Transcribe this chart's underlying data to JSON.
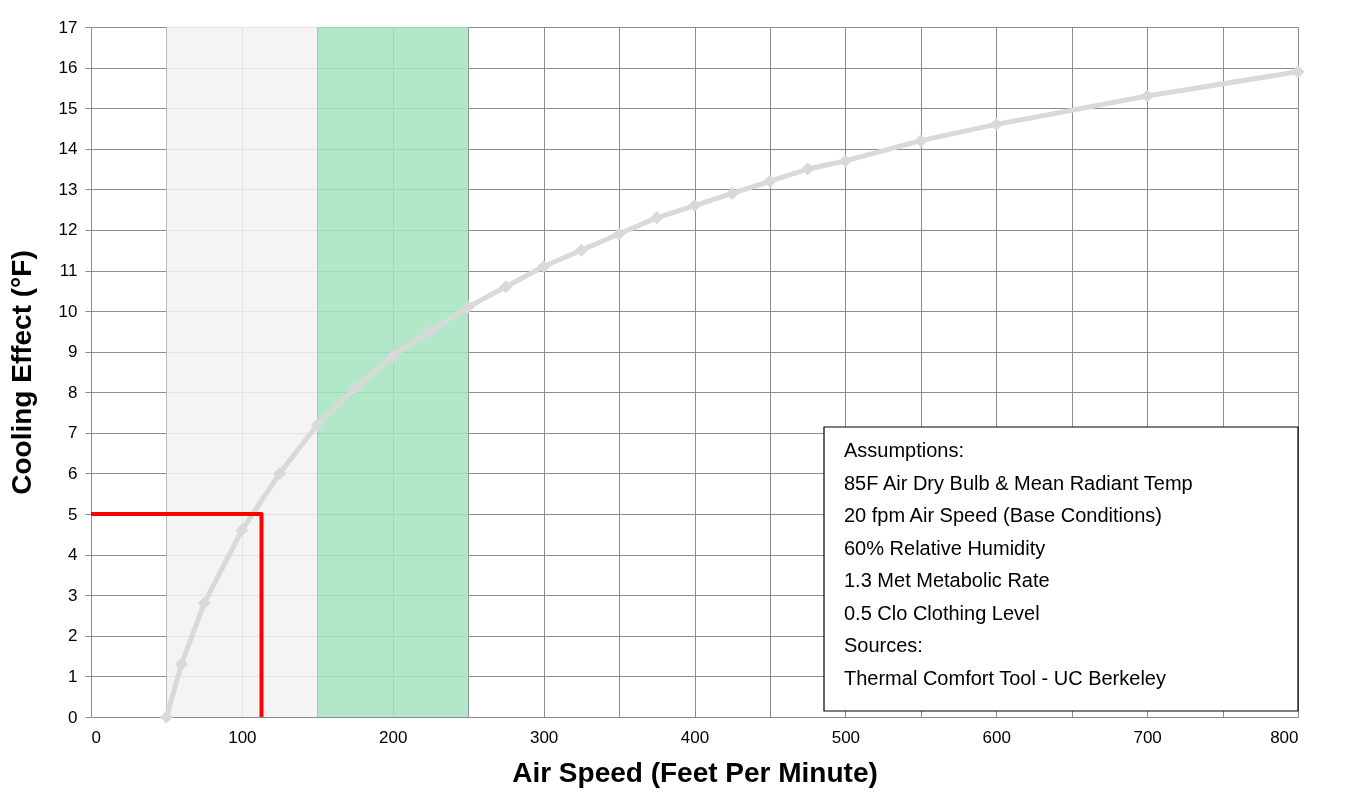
{
  "chart_data": {
    "type": "line",
    "xlabel": "Air Speed (Feet Per Minute)",
    "ylabel": "Cooling Effect (°F)",
    "xlim": [
      0,
      800
    ],
    "ylim": [
      0,
      17
    ],
    "xticks": [
      0,
      {
        "value": 50,
        "label": null
      },
      100,
      {
        "value": 150,
        "label": null
      },
      200,
      {
        "value": 250,
        "label": null
      },
      300,
      {
        "value": 350,
        "label": null
      },
      400,
      {
        "value": 450,
        "label": null
      },
      500,
      {
        "value": 550,
        "label": null
      },
      600,
      {
        "value": 650,
        "label": null
      },
      700,
      {
        "value": 750,
        "label": null
      },
      800
    ],
    "yticks": [
      0,
      1,
      2,
      3,
      4,
      5,
      6,
      7,
      8,
      9,
      10,
      11,
      12,
      13,
      14,
      15,
      16,
      17
    ],
    "grid": true,
    "series": [
      {
        "color": "#d9d9d9",
        "marker": "diamond",
        "x": [
          50,
          60,
          75,
          100,
          125,
          150,
          175,
          200,
          225,
          250,
          275,
          300,
          325,
          350,
          375,
          400,
          425,
          450,
          475,
          500,
          550,
          600,
          700,
          800
        ],
        "values": [
          0,
          1.3,
          2.8,
          4.6,
          6.0,
          7.2,
          8.1,
          8.9,
          9.5,
          10.1,
          10.6,
          11.1,
          11.5,
          11.9,
          12.3,
          12.6,
          12.9,
          13.2,
          13.5,
          13.7,
          14.2,
          14.6,
          15.3,
          15.9
        ]
      },
      {
        "color": "#ff0000",
        "marker": "none",
        "x": [
          113,
          113,
          0
        ],
        "values": [
          0,
          5,
          5
        ]
      }
    ],
    "bands": [
      {
        "axis": "x",
        "from": 50,
        "to": 150,
        "color": "#f2f2f2"
      },
      {
        "axis": "x",
        "from": 150,
        "to": 250,
        "color": "#a6e3c1"
      }
    ],
    "annotations": [
      "Assumptions:",
      "85F Air Dry Bulb & Mean Radiant Temp",
      "20 fpm Air Speed (Base Conditions)",
      "60% Relative Humidity",
      "1.3 Met Metabolic Rate",
      "0.5 Clo Clothing Level",
      "Sources:",
      "Thermal Comfort Tool - UC Berkeley"
    ]
  }
}
